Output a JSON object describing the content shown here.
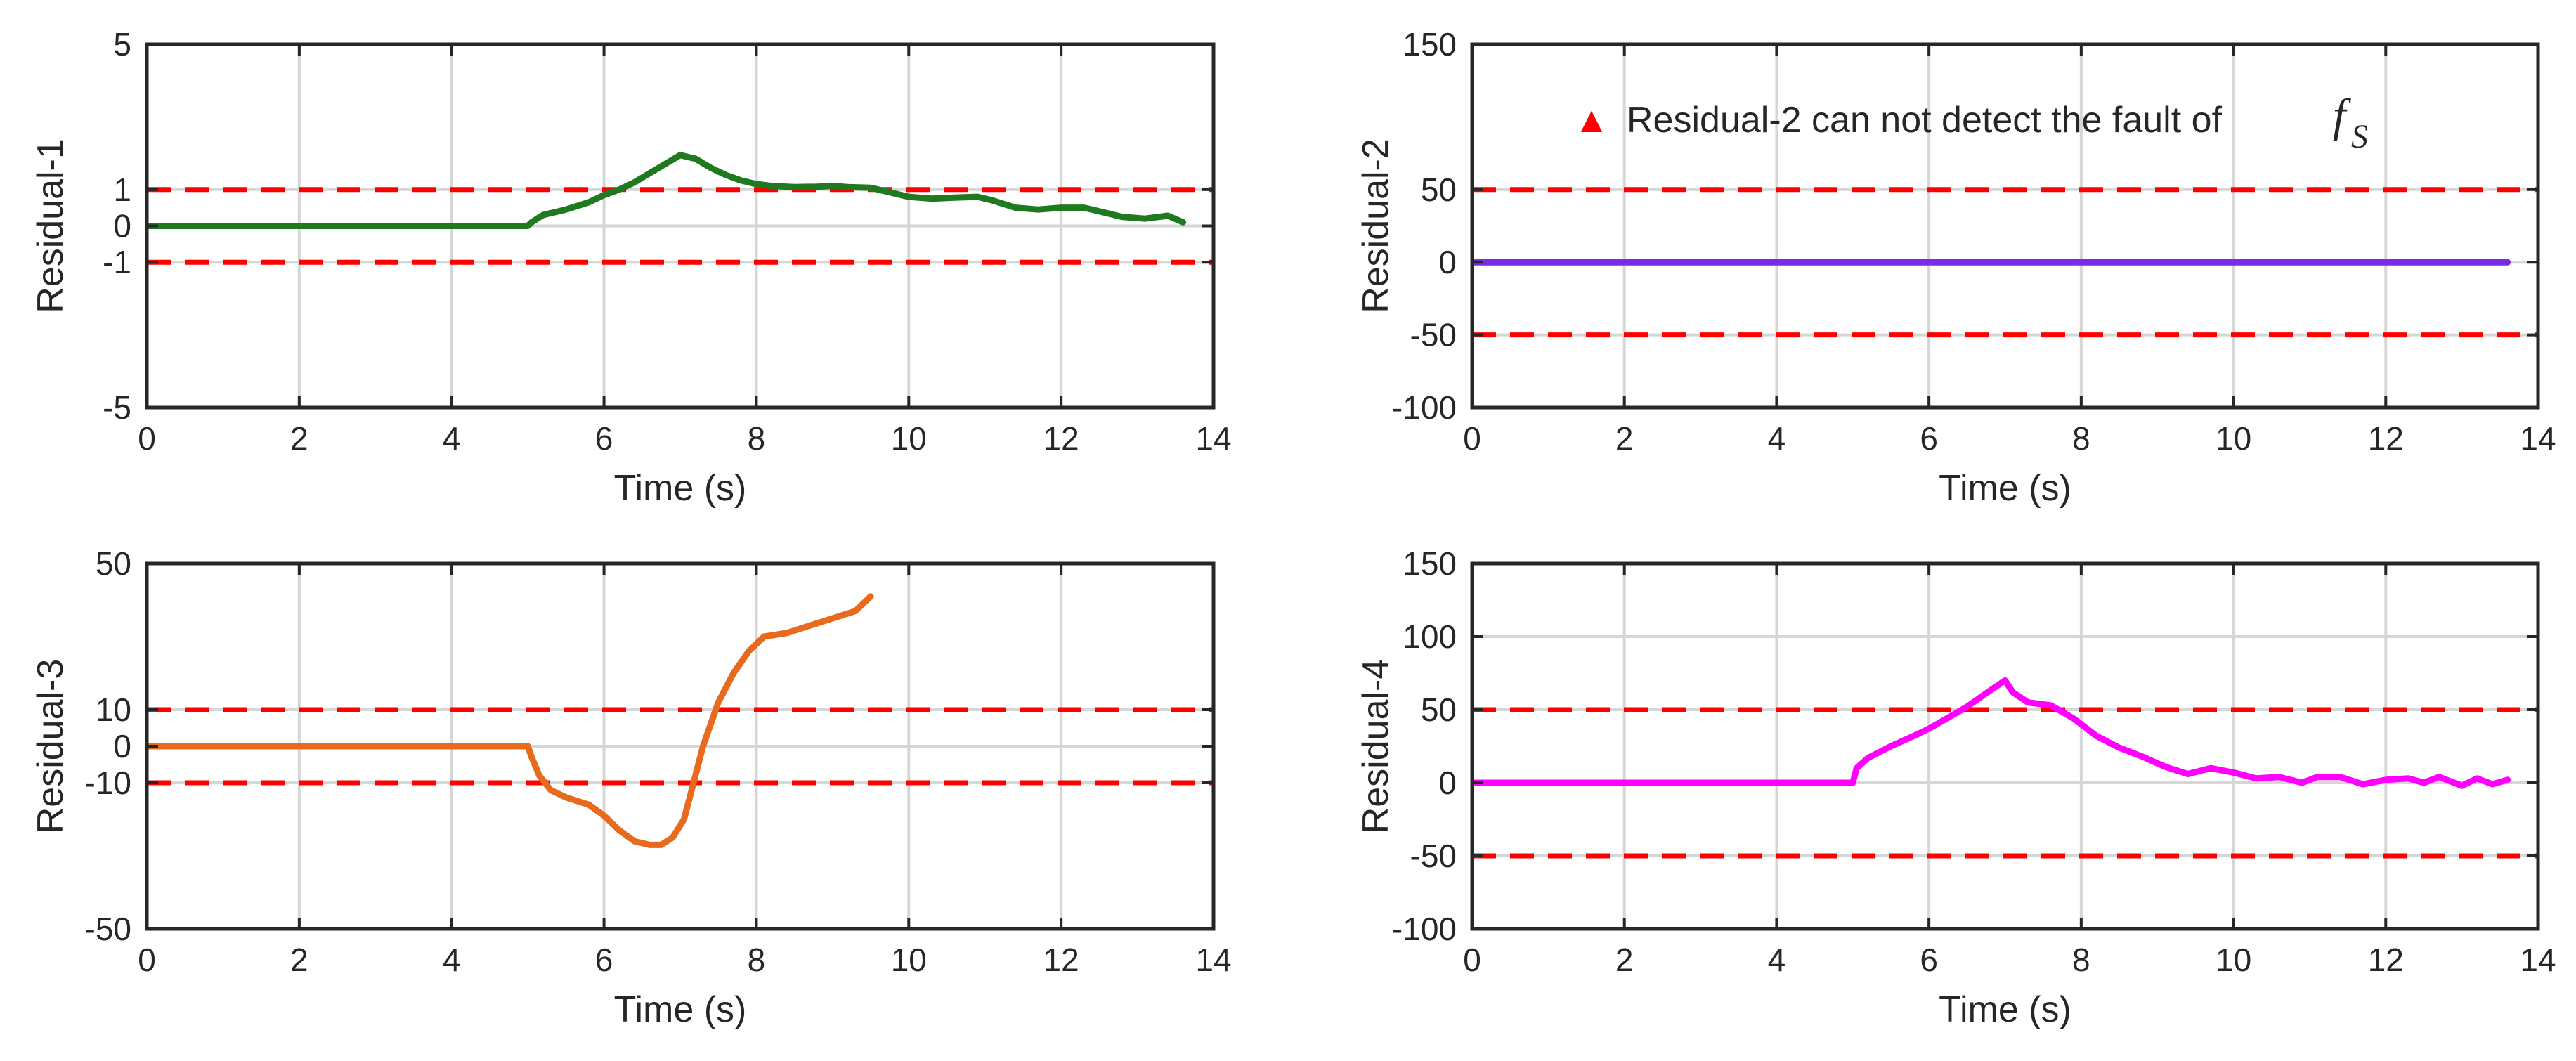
{
  "chart_data": [
    {
      "type": "line",
      "id": "p1",
      "title": "",
      "xlabel": "Time (s)",
      "ylabel": "Residual-1",
      "xlim": [
        0,
        14
      ],
      "ylim": [
        -5,
        5
      ],
      "xticks": [
        0,
        2,
        4,
        6,
        8,
        10,
        12,
        14
      ],
      "yticks": [
        -5,
        -1,
        0,
        1,
        5
      ],
      "grid": true,
      "thresholds": [
        1,
        -1
      ],
      "threshold_color": "#ff0000",
      "series": [
        {
          "name": "Residual-1",
          "color": "#1f7a1f",
          "x": [
            0,
            5.0,
            5.05,
            5.2,
            5.5,
            5.8,
            6.0,
            6.2,
            6.4,
            6.6,
            6.8,
            7.0,
            7.2,
            7.4,
            7.6,
            7.8,
            8.0,
            8.2,
            8.5,
            8.8,
            9.0,
            9.2,
            9.5,
            9.7,
            10.0,
            10.3,
            10.6,
            10.9,
            11.1,
            11.4,
            11.7,
            12.0,
            12.3,
            12.5,
            12.8,
            13.1,
            13.4,
            13.6
          ],
          "y": [
            0,
            0,
            0.1,
            0.3,
            0.45,
            0.65,
            0.85,
            1.0,
            1.2,
            1.45,
            1.7,
            1.95,
            1.85,
            1.6,
            1.4,
            1.25,
            1.15,
            1.1,
            1.07,
            1.08,
            1.1,
            1.07,
            1.05,
            0.95,
            0.8,
            0.75,
            0.78,
            0.8,
            0.7,
            0.5,
            0.45,
            0.5,
            0.5,
            0.4,
            0.25,
            0.2,
            0.28,
            0.1
          ]
        }
      ]
    },
    {
      "type": "line",
      "id": "p2",
      "title": "",
      "xlabel": "Time (s)",
      "ylabel": "Residual-2",
      "xlim": [
        0,
        14
      ],
      "ylim": [
        -100,
        150
      ],
      "xticks": [
        0,
        2,
        4,
        6,
        8,
        10,
        12,
        14
      ],
      "yticks": [
        -100,
        -50,
        0,
        50,
        150
      ],
      "grid": true,
      "thresholds": [
        50,
        -50
      ],
      "threshold_color": "#ff0000",
      "annotation": {
        "marker": "▲",
        "marker_color": "#ff0000",
        "text": "Residual-2 can not detect the fault of",
        "math_symbol": "f",
        "math_subscript": "S"
      },
      "series": [
        {
          "name": "Residual-2",
          "color": "#7a2bea",
          "x": [
            0,
            13.6
          ],
          "y": [
            0,
            0
          ]
        }
      ]
    },
    {
      "type": "line",
      "id": "p3",
      "title": "",
      "xlabel": "Time (s)",
      "ylabel": "Residual-3",
      "xlim": [
        0,
        14
      ],
      "ylim": [
        -50,
        50
      ],
      "xticks": [
        0,
        2,
        4,
        6,
        8,
        10,
        12,
        14
      ],
      "yticks": [
        -50,
        -10,
        0,
        10,
        50
      ],
      "grid": true,
      "thresholds": [
        10,
        -10
      ],
      "threshold_color": "#ff0000",
      "series": [
        {
          "name": "Residual-3",
          "color": "#e86a1c",
          "x": [
            0,
            5.0,
            5.05,
            5.15,
            5.3,
            5.5,
            5.8,
            6.0,
            6.2,
            6.4,
            6.6,
            6.75,
            6.9,
            7.05,
            7.15,
            7.3,
            7.5,
            7.7,
            7.9,
            8.1,
            8.4,
            8.7,
            9.0,
            9.3,
            9.5
          ],
          "y": [
            0,
            0,
            -3,
            -8,
            -12,
            -14,
            -16,
            -19,
            -23,
            -26,
            -27,
            -27,
            -25,
            -20,
            -12,
            0,
            12,
            20,
            26,
            30,
            31,
            33,
            35,
            37,
            41
          ]
        }
      ]
    },
    {
      "type": "line",
      "id": "p4",
      "title": "",
      "xlabel": "Time (s)",
      "ylabel": "Residual-4",
      "xlim": [
        0,
        14
      ],
      "ylim": [
        -100,
        150
      ],
      "xticks": [
        0,
        2,
        4,
        6,
        8,
        10,
        12,
        14
      ],
      "yticks": [
        -100,
        -50,
        0,
        50,
        100,
        150
      ],
      "grid": true,
      "thresholds": [
        50,
        -50
      ],
      "threshold_color": "#ff0000",
      "series": [
        {
          "name": "Residual-4",
          "color": "#ff00ff",
          "x": [
            0,
            5.0,
            5.05,
            5.2,
            5.5,
            5.8,
            6.0,
            6.2,
            6.5,
            6.8,
            7.0,
            7.1,
            7.3,
            7.6,
            7.9,
            8.2,
            8.5,
            8.8,
            9.1,
            9.4,
            9.7,
            10.0,
            10.3,
            10.6,
            10.9,
            11.1,
            11.4,
            11.7,
            12.0,
            12.3,
            12.5,
            12.7,
            13.0,
            13.2,
            13.4,
            13.6
          ],
          "y": [
            0,
            0,
            10,
            17,
            25,
            32,
            37,
            43,
            52,
            63,
            70,
            62,
            55,
            53,
            44,
            32,
            24,
            18,
            11,
            6,
            10,
            7,
            3,
            4,
            0,
            4,
            4,
            -1,
            2,
            3,
            0,
            4,
            -2,
            3,
            -1,
            2
          ]
        }
      ]
    }
  ]
}
